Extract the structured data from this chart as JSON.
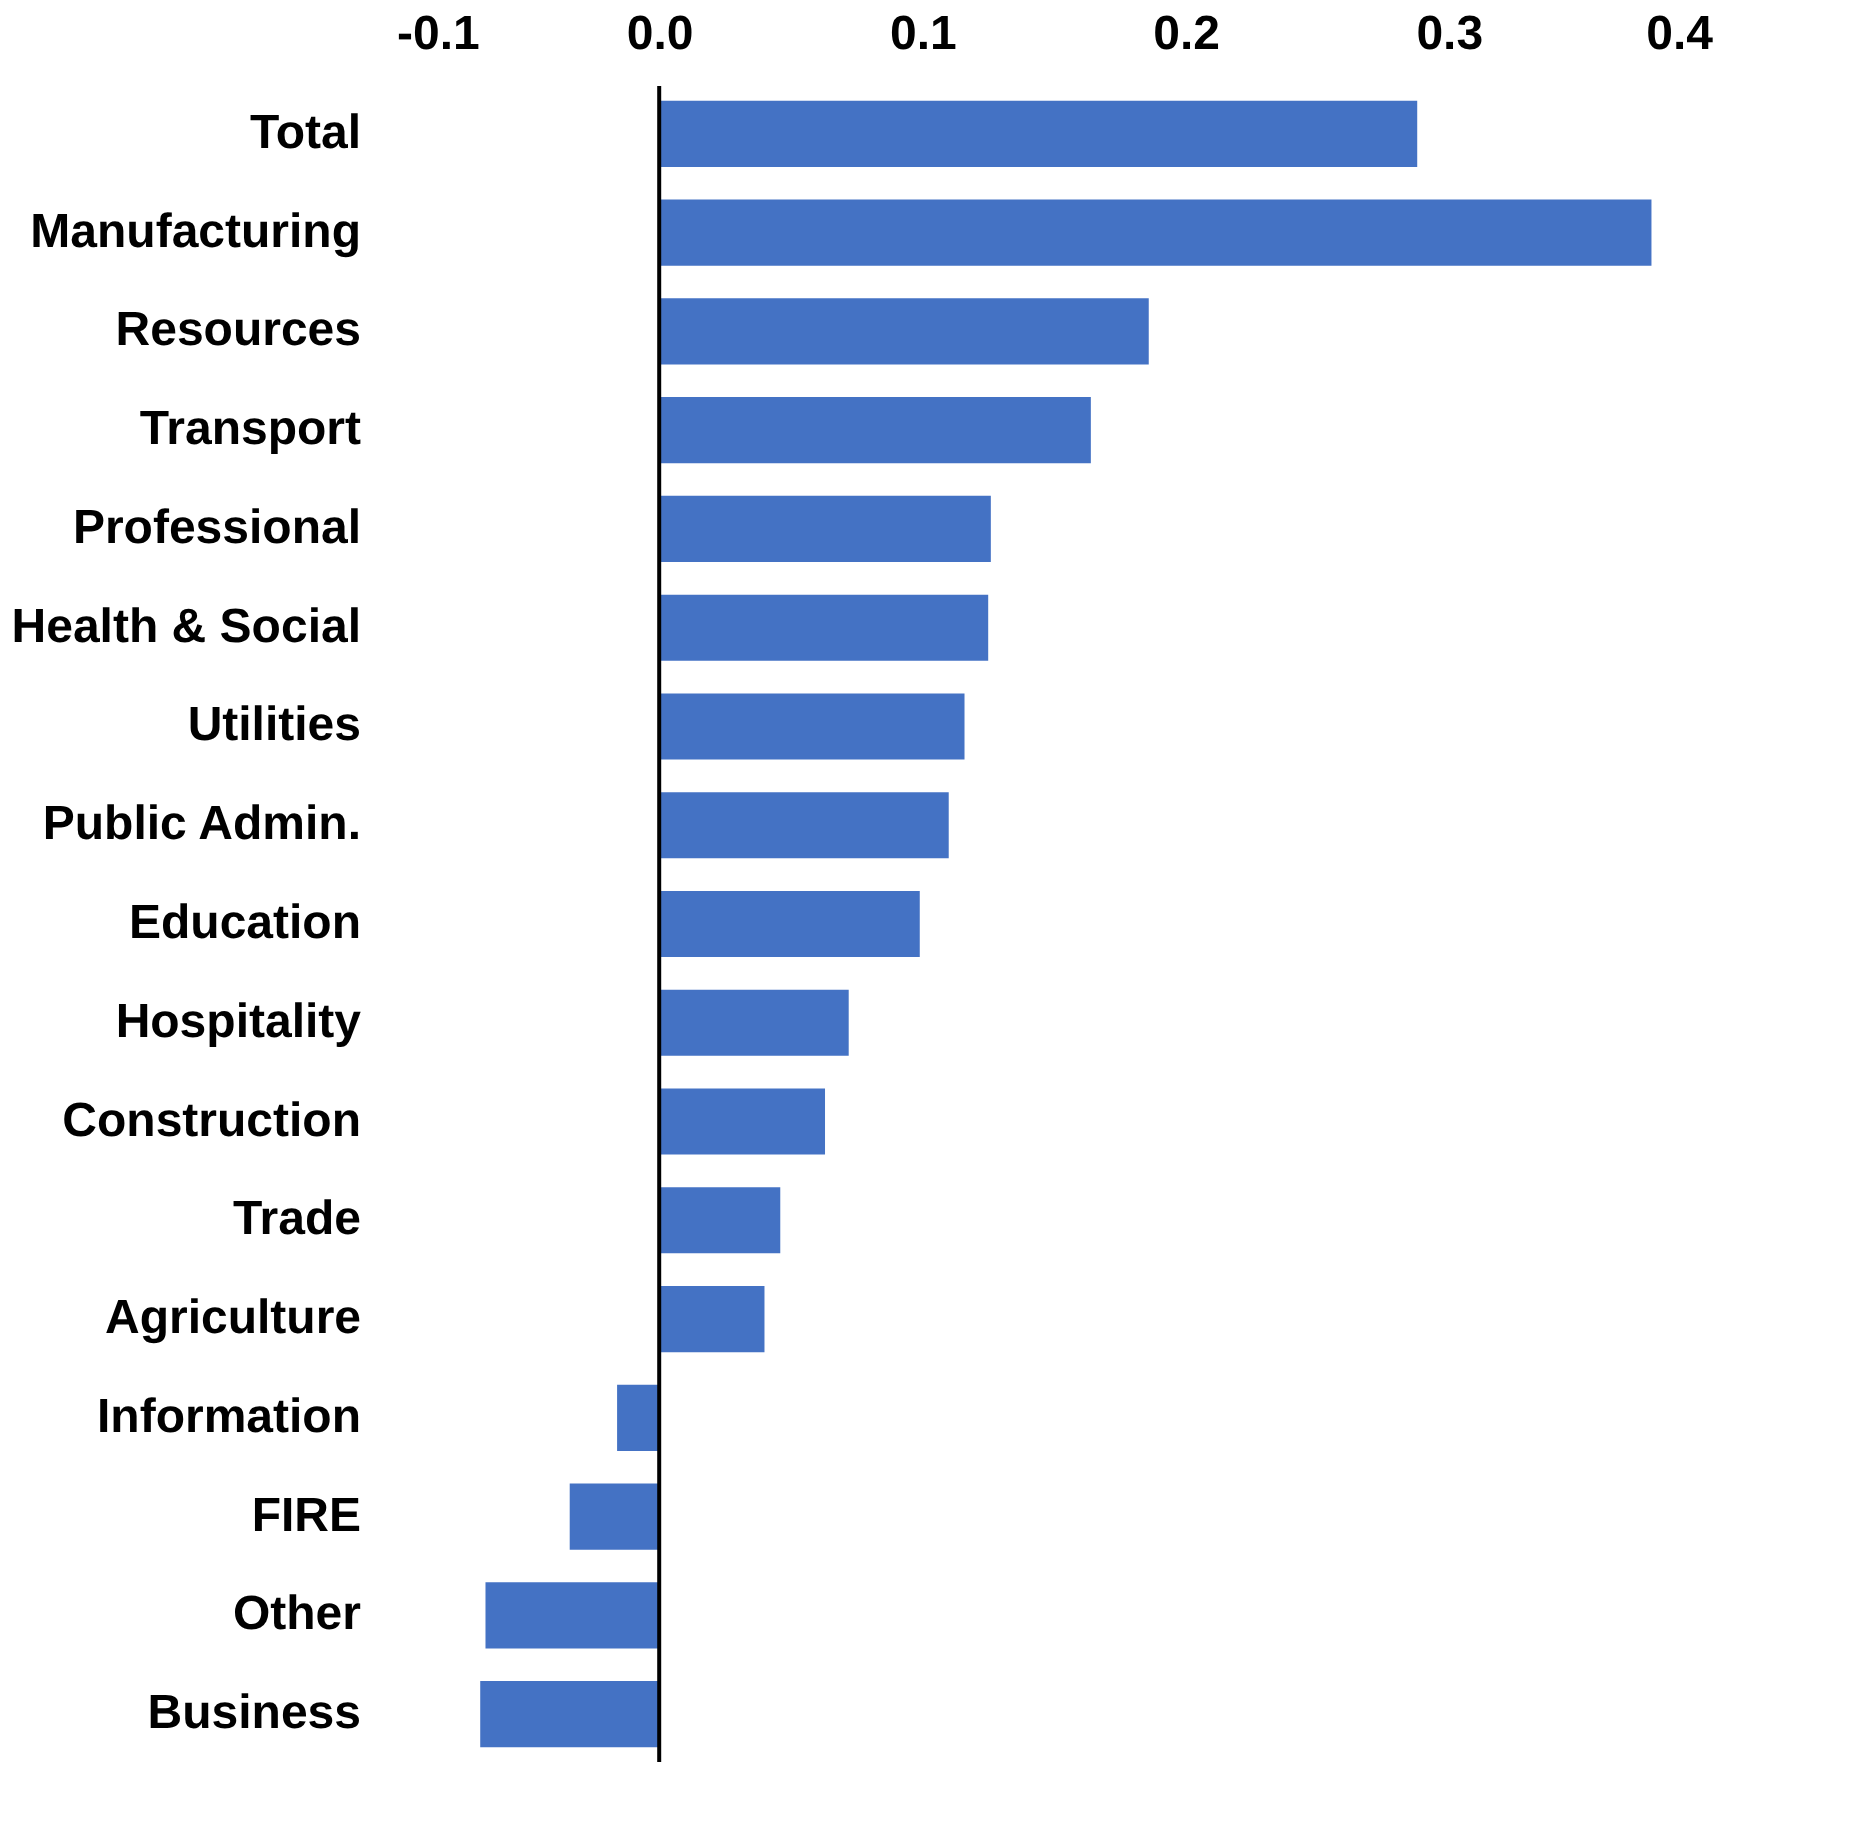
{
  "chart_data": {
    "type": "bar",
    "orientation": "horizontal",
    "categories": [
      "Total",
      "Manufacturing",
      "Resources",
      "Transport",
      "Professional",
      "Health & Social",
      "Utilities",
      "Public Admin.",
      "Education",
      "Hospitality",
      "Construction",
      "Trade",
      "Agriculture",
      "Information",
      "FIRE",
      "Other",
      "Business"
    ],
    "values": [
      0.288,
      0.377,
      0.186,
      0.164,
      0.126,
      0.125,
      0.116,
      0.11,
      0.099,
      0.072,
      0.063,
      0.046,
      0.04,
      -0.016,
      -0.034,
      -0.066,
      -0.068
    ],
    "color": "#4472c4",
    "xlim": [
      -0.1,
      0.4
    ],
    "xticks": [
      -0.1,
      {
        "value": 0,
        "label": "0.0"
      },
      0.1,
      0.2,
      0.3,
      0.4
    ],
    "grid": false,
    "ref_lines": [
      {
        "axis": "x",
        "value": 0,
        "color": "#000000"
      }
    ]
  }
}
